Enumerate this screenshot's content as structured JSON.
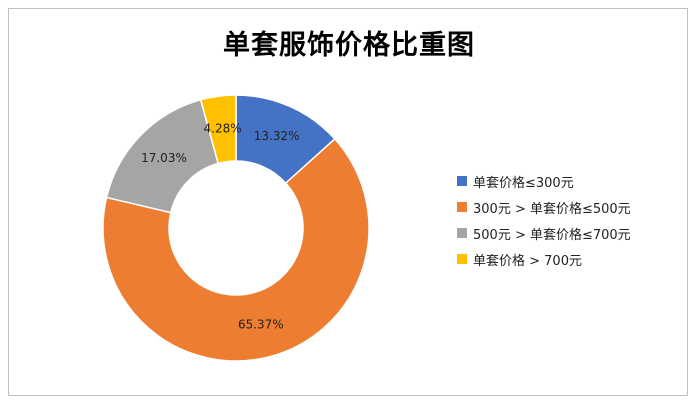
{
  "chart_data": {
    "type": "pie",
    "subtype": "donut",
    "title": "单套服饰价格比重图",
    "legend_position": "right",
    "slices": [
      {
        "label": "单套价格≤300元",
        "value": 13.32,
        "display": "13.32%",
        "color": "#4472C4"
      },
      {
        "label": "300元 > 单套价格≤500元",
        "value": 65.37,
        "display": "65.37%",
        "color": "#ED7D31"
      },
      {
        "label": "500元 > 单套价格≤700元",
        "value": 17.03,
        "display": "17.03%",
        "color": "#A5A5A5"
      },
      {
        "label": "单套价格 > 700元",
        "value": 4.28,
        "display": "4.28%",
        "color": "#FFC000"
      }
    ]
  }
}
